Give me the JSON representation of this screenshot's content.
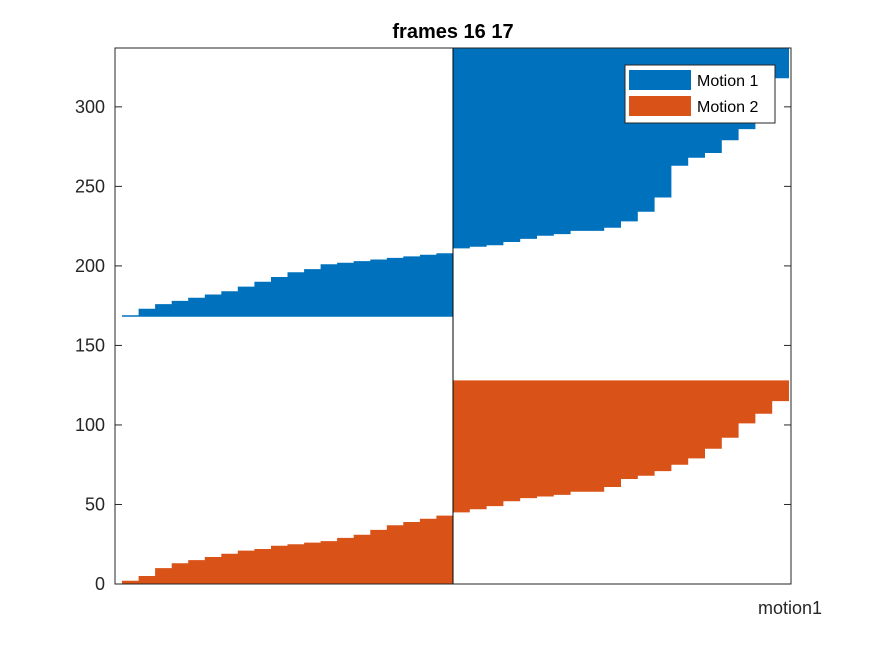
{
  "chart_data": {
    "type": "area",
    "title": "frames 16 17",
    "xlabel": "motion1",
    "ylabel": "",
    "ylim": [
      0,
      337
    ],
    "yticks": [
      0,
      50,
      100,
      150,
      200,
      250,
      300
    ],
    "grid": false,
    "legend_position": "top-right",
    "series": [
      {
        "name": "Motion 1",
        "color": "#0072BD",
        "segments": [
          {
            "from": "left",
            "base": 168,
            "profile": [
              [
                0.0,
                169
              ],
              [
                0.05,
                173
              ],
              [
                0.1,
                176
              ],
              [
                0.15,
                178
              ],
              [
                0.2,
                180
              ],
              [
                0.25,
                182
              ],
              [
                0.3,
                184
              ],
              [
                0.35,
                187
              ],
              [
                0.4,
                190
              ],
              [
                0.45,
                193
              ],
              [
                0.5,
                196
              ],
              [
                0.55,
                198
              ],
              [
                0.6,
                201
              ],
              [
                0.65,
                202
              ],
              [
                0.7,
                203
              ],
              [
                0.75,
                204
              ],
              [
                0.8,
                205
              ],
              [
                0.85,
                206
              ],
              [
                0.9,
                207
              ],
              [
                0.95,
                208
              ],
              [
                1.0,
                211
              ]
            ]
          },
          {
            "from": "right",
            "base": 337,
            "profile": [
              [
                0.0,
                211
              ],
              [
                0.05,
                212
              ],
              [
                0.1,
                213
              ],
              [
                0.15,
                215
              ],
              [
                0.2,
                217
              ],
              [
                0.25,
                219
              ],
              [
                0.3,
                220
              ],
              [
                0.35,
                222
              ],
              [
                0.4,
                222
              ],
              [
                0.45,
                224
              ],
              [
                0.5,
                228
              ],
              [
                0.55,
                234
              ],
              [
                0.6,
                243
              ],
              [
                0.65,
                263
              ],
              [
                0.7,
                268
              ],
              [
                0.75,
                271
              ],
              [
                0.8,
                279
              ],
              [
                0.85,
                286
              ],
              [
                0.9,
                299
              ],
              [
                0.95,
                318
              ],
              [
                1.0,
                337
              ]
            ]
          }
        ]
      },
      {
        "name": "Motion 2",
        "color": "#D95319",
        "segments": [
          {
            "from": "left",
            "base": 0,
            "profile": [
              [
                0.0,
                2
              ],
              [
                0.05,
                5
              ],
              [
                0.1,
                10
              ],
              [
                0.15,
                13
              ],
              [
                0.2,
                15
              ],
              [
                0.25,
                17
              ],
              [
                0.3,
                19
              ],
              [
                0.35,
                21
              ],
              [
                0.4,
                22
              ],
              [
                0.45,
                24
              ],
              [
                0.5,
                25
              ],
              [
                0.55,
                26
              ],
              [
                0.6,
                27
              ],
              [
                0.65,
                29
              ],
              [
                0.7,
                31
              ],
              [
                0.75,
                34
              ],
              [
                0.8,
                37
              ],
              [
                0.85,
                39
              ],
              [
                0.9,
                41
              ],
              [
                0.95,
                43
              ],
              [
                1.0,
                45
              ]
            ]
          },
          {
            "from": "right",
            "base": 128,
            "profile": [
              [
                0.0,
                45
              ],
              [
                0.05,
                47
              ],
              [
                0.1,
                49
              ],
              [
                0.15,
                52
              ],
              [
                0.2,
                54
              ],
              [
                0.25,
                55
              ],
              [
                0.3,
                56
              ],
              [
                0.35,
                58
              ],
              [
                0.4,
                58
              ],
              [
                0.45,
                61
              ],
              [
                0.5,
                66
              ],
              [
                0.55,
                68
              ],
              [
                0.6,
                71
              ],
              [
                0.65,
                75
              ],
              [
                0.7,
                79
              ],
              [
                0.75,
                85
              ],
              [
                0.8,
                92
              ],
              [
                0.85,
                101
              ],
              [
                0.9,
                107
              ],
              [
                0.95,
                115
              ],
              [
                1.0,
                128
              ]
            ]
          }
        ]
      }
    ]
  }
}
